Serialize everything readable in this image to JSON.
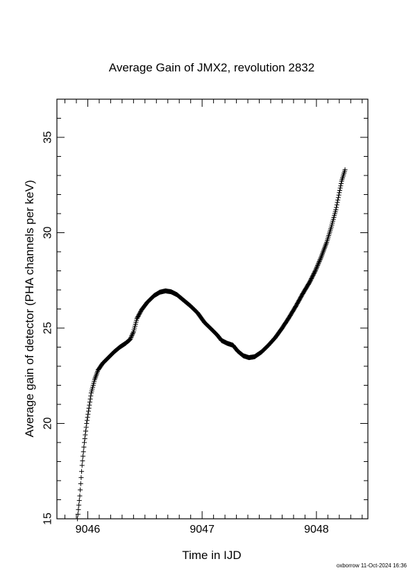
{
  "chart_data": {
    "type": "scatter",
    "title": "Average Gain of JMX2, revolution 2832",
    "xlabel": "Time in IJD",
    "ylabel": "Average gain of detector (PHA channels per keV)",
    "xlim": [
      9045.73,
      9048.45
    ],
    "ylim": [
      15,
      37
    ],
    "xticks": [
      9046,
      9047,
      9048
    ],
    "yticks": [
      15,
      20,
      25,
      30,
      35
    ],
    "marker": "plus",
    "grid": false,
    "series": [
      {
        "points": [
          [
            9045.91,
            15.0
          ],
          [
            9045.93,
            16.2
          ],
          [
            9045.95,
            17.8
          ],
          [
            9045.97,
            19.0
          ],
          [
            9045.99,
            20.0
          ],
          [
            9046.01,
            20.8
          ],
          [
            9046.03,
            21.6
          ],
          [
            9046.06,
            22.3
          ],
          [
            9046.09,
            22.8
          ],
          [
            9046.13,
            23.15
          ],
          [
            9046.18,
            23.45
          ],
          [
            9046.23,
            23.75
          ],
          [
            9046.28,
            24.0
          ],
          [
            9046.33,
            24.2
          ],
          [
            9046.37,
            24.4
          ],
          [
            9046.4,
            24.8
          ],
          [
            9046.43,
            25.5
          ],
          [
            9046.47,
            25.95
          ],
          [
            9046.52,
            26.35
          ],
          [
            9046.58,
            26.7
          ],
          [
            9046.63,
            26.88
          ],
          [
            9046.68,
            26.95
          ],
          [
            9046.73,
            26.9
          ],
          [
            9046.78,
            26.75
          ],
          [
            9046.84,
            26.45
          ],
          [
            9046.9,
            26.15
          ],
          [
            9046.96,
            25.8
          ],
          [
            9047.02,
            25.3
          ],
          [
            9047.08,
            24.95
          ],
          [
            9047.13,
            24.65
          ],
          [
            9047.17,
            24.35
          ],
          [
            9047.22,
            24.2
          ],
          [
            9047.27,
            24.1
          ],
          [
            9047.31,
            23.8
          ],
          [
            9047.36,
            23.55
          ],
          [
            9047.41,
            23.45
          ],
          [
            9047.46,
            23.5
          ],
          [
            9047.52,
            23.75
          ],
          [
            9047.58,
            24.1
          ],
          [
            9047.64,
            24.5
          ],
          [
            9047.7,
            25.0
          ],
          [
            9047.76,
            25.55
          ],
          [
            9047.82,
            26.15
          ],
          [
            9047.88,
            26.8
          ],
          [
            9047.94,
            27.4
          ],
          [
            9047.99,
            28.0
          ],
          [
            9048.04,
            28.7
          ],
          [
            9048.09,
            29.5
          ],
          [
            9048.13,
            30.3
          ],
          [
            9048.17,
            31.2
          ],
          [
            9048.2,
            32.1
          ],
          [
            9048.22,
            32.7
          ],
          [
            9048.25,
            33.3
          ]
        ]
      }
    ]
  },
  "footer": {
    "stamp": "oxborrow 11-Oct-2024 16:36"
  }
}
